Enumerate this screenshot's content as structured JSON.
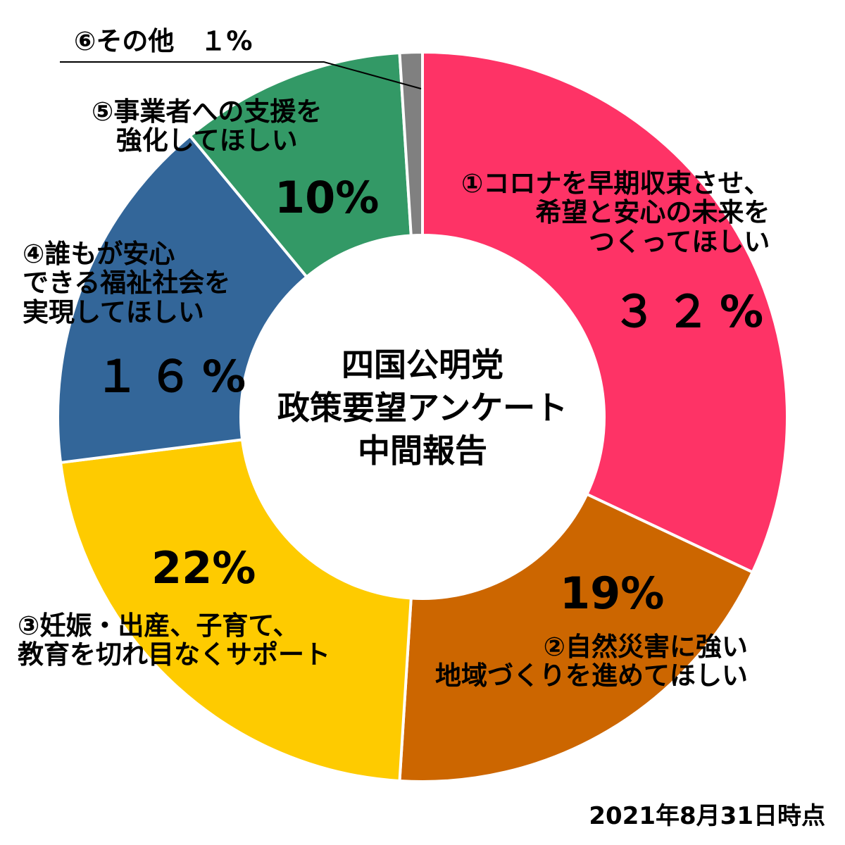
{
  "chart_data": {
    "type": "pie",
    "donut": true,
    "title": [
      "四国公明党",
      "政策要望アンケート",
      "中間報告"
    ],
    "date_note": "2021年8月31日時点",
    "slices": [
      {
        "marker": "①",
        "label_lines": [
          "①コロナを早期収束させ、",
          "希望と安心の未来を",
          "つくってほしい"
        ],
        "value": 32,
        "value_label": "３２%",
        "color": "#fe3366"
      },
      {
        "marker": "②",
        "label_lines": [
          "②自然災害に強い",
          "地域づくりを進めてほしい"
        ],
        "value": 19,
        "value_label": "19%",
        "color": "#cc6600"
      },
      {
        "marker": "③",
        "label_lines": [
          "③妊娠・出産、子育て、",
          "教育を切れ目なくサポート"
        ],
        "value": 22,
        "value_label": "22%",
        "color": "#fecb00"
      },
      {
        "marker": "④",
        "label_lines": [
          "④誰もが安心",
          "できる福祉社会を",
          "実現してほしい"
        ],
        "value": 16,
        "value_label": "１６%",
        "color": "#336699"
      },
      {
        "marker": "⑤",
        "label_lines": [
          "⑤事業者への支援を",
          "強化してほしい"
        ],
        "value": 10,
        "value_label": "10%",
        "color": "#339966"
      },
      {
        "marker": "⑥",
        "label_lines": [
          "⑥その他　１%"
        ],
        "value": 1,
        "value_label": "",
        "color": "#808080"
      }
    ]
  }
}
